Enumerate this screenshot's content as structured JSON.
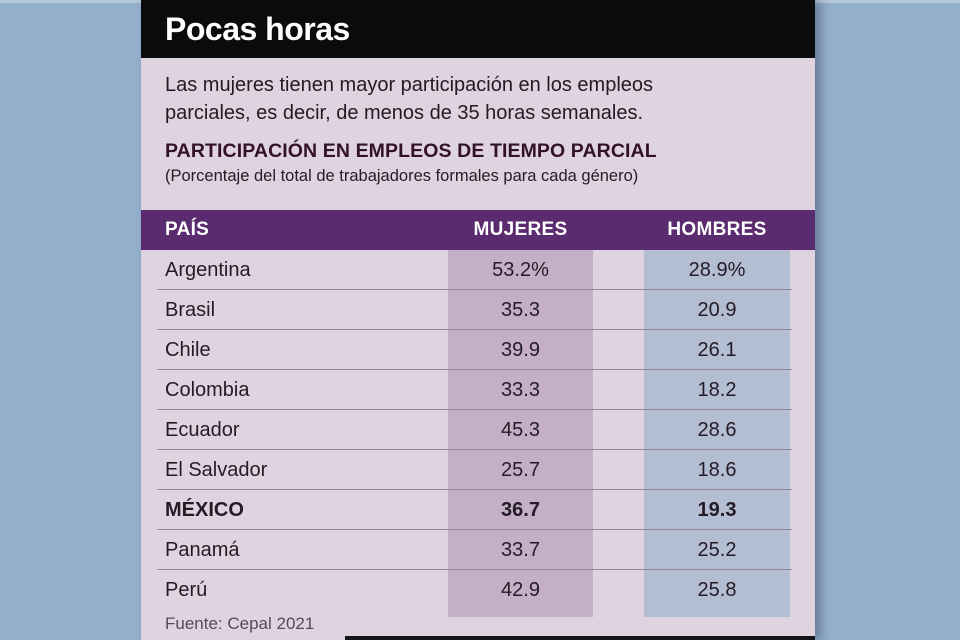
{
  "card": {
    "title": "Pocas horas",
    "intro": "Las mujeres tienen mayor participación en los empleos parciales, es decir, de menos de 35 horas semanales.",
    "subtitle": "PARTICIPACIÓN EN EMPLEOS DE TIEMPO PARCIAL",
    "note": "(Porcentaje del total de trabajadores formales para cada género)",
    "source": "Fuente: Cepal 2021"
  },
  "table": {
    "headers": {
      "country": "PAÍS",
      "mujeres": "MUJERES",
      "hombres": "HOMBRES"
    },
    "rows": [
      {
        "country": "Argentina",
        "mujeres": "53.2%",
        "hombres": "28.9%",
        "bold": false
      },
      {
        "country": "Brasil",
        "mujeres": "35.3",
        "hombres": "20.9",
        "bold": false
      },
      {
        "country": "Chile",
        "mujeres": "39.9",
        "hombres": "26.1",
        "bold": false
      },
      {
        "country": "Colombia",
        "mujeres": "33.3",
        "hombres": "18.2",
        "bold": false
      },
      {
        "country": "Ecuador",
        "mujeres": "45.3",
        "hombres": "28.6",
        "bold": false
      },
      {
        "country": "El Salvador",
        "mujeres": "25.7",
        "hombres": "18.6",
        "bold": false
      },
      {
        "country": "MÉXICO",
        "mujeres": "36.7",
        "hombres": "19.3",
        "bold": true
      },
      {
        "country": "Panamá",
        "mujeres": "33.7",
        "hombres": "25.2",
        "bold": false
      },
      {
        "country": "Perú",
        "mujeres": "42.9",
        "hombres": "25.8",
        "bold": false
      }
    ]
  },
  "colors": {
    "backdrop": "#93afcc",
    "card_background": "#ded3de",
    "title_bar": "#0b0b0d",
    "table_header": "#5b2b70",
    "mujeres_band": "#c4afc6",
    "hombres_band": "#b3bed2",
    "text": "#241b26",
    "divider": "#908897"
  },
  "chart_data": {
    "type": "table",
    "title": "Pocas horas",
    "subtitle": "PARTICIPACIÓN EN EMPLEOS DE TIEMPO PARCIAL",
    "note": "(Porcentaje del total de trabajadores formales para cada género)",
    "unit": "%",
    "categories": [
      "Argentina",
      "Brasil",
      "Chile",
      "Colombia",
      "Ecuador",
      "El Salvador",
      "MÉXICO",
      "Panamá",
      "Perú"
    ],
    "series": [
      {
        "name": "MUJERES",
        "values": [
          53.2,
          35.3,
          39.9,
          33.3,
          45.3,
          25.7,
          36.7,
          33.7,
          42.9
        ]
      },
      {
        "name": "HOMBRES",
        "values": [
          28.9,
          20.9,
          26.1,
          18.2,
          28.6,
          18.6,
          19.3,
          25.2,
          25.8
        ]
      }
    ],
    "source": "Fuente: Cepal 2021",
    "highlighted_row": "MÉXICO"
  }
}
